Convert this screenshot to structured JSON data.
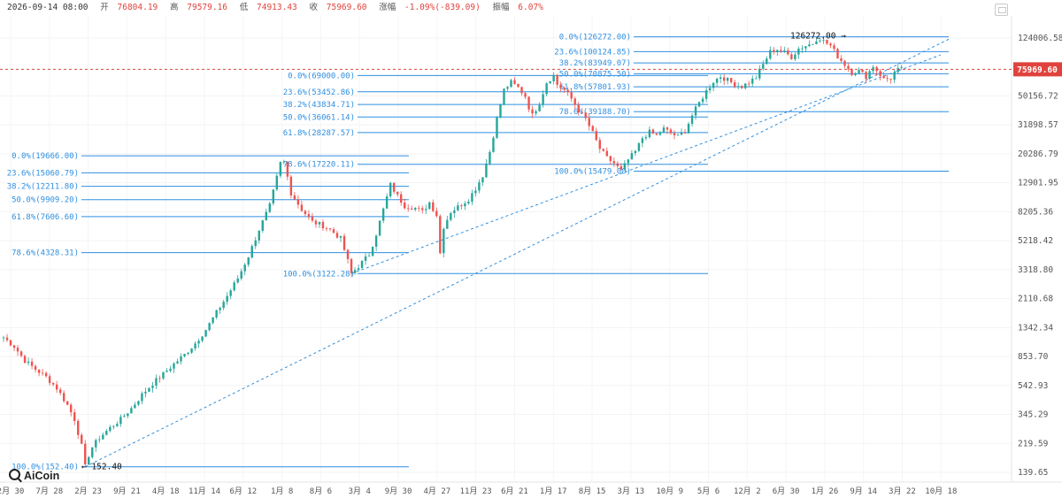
{
  "header": {
    "datetime": "2026-09-14 08:00",
    "open_label": "开",
    "open": "76804.19",
    "high_label": "高",
    "high": "79579.16",
    "low_label": "低",
    "low": "74913.43",
    "close_label": "收",
    "close": "75969.60",
    "change_label": "涨幅",
    "change": "-1.09%(-839.09)",
    "amplitude_label": "振幅",
    "amplitude": "6.07%"
  },
  "logo": {
    "text": "AiCoin"
  },
  "colors": {
    "up": "#26a69a",
    "down": "#ef5350",
    "fib": "#2f8fe0",
    "price_line": "#e0433d",
    "text": "#333333"
  },
  "chart_data": {
    "type": "candlestick",
    "y_scale": "log",
    "ylim": [
      120,
      175000
    ],
    "y_ticks": [
      "124006.58",
      "75969.60",
      "50156.72",
      "31898.57",
      "20286.79",
      "12901.95",
      "8205.36",
      "5218.42",
      "3318.80",
      "2110.68",
      "1342.34",
      "853.70",
      "542.93",
      "345.29",
      "219.59",
      "139.65"
    ],
    "x_ticks": [
      "2月 30",
      "7月 28",
      "2月 23",
      "9月 21",
      "4月 18",
      "11月 14",
      "6月 12",
      "1月 8",
      "8月 6",
      "3月 4",
      "9月 30",
      "4月 27",
      "11月 23",
      "6月 21",
      "1月 17",
      "8月 15",
      "3月 13",
      "10月 9",
      "5月 6",
      "12月 2",
      "6月 30",
      "1月 26",
      "9月 14",
      "3月 22",
      "10月 18"
    ],
    "current_price": "75969.60",
    "price_path": [
      [
        0,
        1150
      ],
      [
        3,
        1000
      ],
      [
        6,
        800
      ],
      [
        9,
        700
      ],
      [
        12,
        620
      ],
      [
        15,
        520
      ],
      [
        18,
        400
      ],
      [
        20,
        320
      ],
      [
        21,
        260
      ],
      [
        22.5,
        190
      ],
      [
        23,
        152.4
      ],
      [
        24.5,
        200
      ],
      [
        27,
        240
      ],
      [
        30,
        280
      ],
      [
        33,
        320
      ],
      [
        36,
        380
      ],
      [
        39,
        470
      ],
      [
        42,
        560
      ],
      [
        45,
        650
      ],
      [
        48,
        760
      ],
      [
        51,
        880
      ],
      [
        54,
        1050
      ],
      [
        57,
        1300
      ],
      [
        60,
        1700
      ],
      [
        63,
        2200
      ],
      [
        66,
        2900
      ],
      [
        69,
        4100
      ],
      [
        72,
        6200
      ],
      [
        75,
        9000
      ],
      [
        77,
        14000
      ],
      [
        78.5,
        19666
      ],
      [
        79.5,
        16000
      ],
      [
        81,
        11000
      ],
      [
        84,
        8500
      ],
      [
        87,
        7000
      ],
      [
        90,
        6600
      ],
      [
        92,
        6200
      ],
      [
        95,
        5400
      ],
      [
        97,
        3800
      ],
      [
        98,
        3122.28
      ],
      [
        100,
        3500
      ],
      [
        103,
        4200
      ],
      [
        105,
        5800
      ],
      [
        107,
        8500
      ],
      [
        109,
        12500
      ],
      [
        111,
        10500
      ],
      [
        113,
        9000
      ],
      [
        116,
        8700
      ],
      [
        118,
        8200
      ],
      [
        120,
        9500
      ],
      [
        122,
        7800
      ],
      [
        123,
        4300
      ],
      [
        124,
        6500
      ],
      [
        126,
        8200
      ],
      [
        129,
        9200
      ],
      [
        131,
        10000
      ],
      [
        133,
        11800
      ],
      [
        135,
        14500
      ],
      [
        137,
        21000
      ],
      [
        139,
        35000
      ],
      [
        141,
        55000
      ],
      [
        143,
        62000
      ],
      [
        145,
        57000
      ],
      [
        147,
        50000
      ],
      [
        148,
        42000
      ],
      [
        149,
        37000
      ],
      [
        151,
        45000
      ],
      [
        153,
        62000
      ],
      [
        155,
        69000
      ],
      [
        156,
        60000
      ],
      [
        158,
        55000
      ],
      [
        160,
        48000
      ],
      [
        162,
        40000
      ],
      [
        164,
        35000
      ],
      [
        166,
        28000
      ],
      [
        168,
        22000
      ],
      [
        170,
        19000
      ],
      [
        172,
        17500
      ],
      [
        174,
        15479
      ],
      [
        176,
        18500
      ],
      [
        178,
        21000
      ],
      [
        180,
        26000
      ],
      [
        182,
        28500
      ],
      [
        184,
        27000
      ],
      [
        186,
        30000
      ],
      [
        188,
        28000
      ],
      [
        190,
        26500
      ],
      [
        192,
        29000
      ],
      [
        194,
        37000
      ],
      [
        196,
        45000
      ],
      [
        198,
        54000
      ],
      [
        200,
        63000
      ],
      [
        202,
        68000
      ],
      [
        204,
        64000
      ],
      [
        206,
        60000
      ],
      [
        208,
        58000
      ],
      [
        210,
        62000
      ],
      [
        212,
        67000
      ],
      [
        214,
        82000
      ],
      [
        216,
        100000
      ],
      [
        218,
        104000
      ],
      [
        220,
        99000
      ],
      [
        222,
        92000
      ],
      [
        224,
        105000
      ],
      [
        226,
        110000
      ],
      [
        228,
        114000
      ],
      [
        229.5,
        126272
      ],
      [
        231,
        118000
      ],
      [
        233,
        110000
      ],
      [
        235,
        93000
      ],
      [
        237,
        82000
      ],
      [
        239,
        72000
      ],
      [
        241,
        74000
      ],
      [
        243,
        68000
      ],
      [
        245,
        80000
      ],
      [
        247,
        70000
      ],
      [
        248,
        65000
      ],
      [
        250,
        66000
      ],
      [
        251,
        72000
      ],
      [
        252.5,
        76804
      ],
      [
        253,
        75969.6
      ]
    ],
    "fib_retracements": [
      {
        "name": "fib-1",
        "levels": [
          {
            "label": "0.0%(19666.00)",
            "value": 19666.0
          },
          {
            "label": "23.6%(15060.79)",
            "value": 15060.79
          },
          {
            "label": "38.2%(12211.80)",
            "value": 12211.8
          },
          {
            "label": "50.0%(9909.20)",
            "value": 9909.2
          },
          {
            "label": "61.8%(7606.60)",
            "value": 7606.6
          },
          {
            "label": "78.6%(4328.31)",
            "value": 4328.31
          },
          {
            "label": "100.0%(152.40)",
            "value": 152.4
          }
        ]
      },
      {
        "name": "fib-2",
        "levels": [
          {
            "label": "0.0%(69000.00)",
            "value": 69000.0
          },
          {
            "label": "23.6%(53452.86)",
            "value": 53452.86
          },
          {
            "label": "38.2%(43834.71)",
            "value": 43834.71
          },
          {
            "label": "50.0%(36061.14)",
            "value": 36061.14
          },
          {
            "label": "61.8%(28287.57)",
            "value": 28287.57
          },
          {
            "label": "78.6%(17220.11)",
            "value": 17220.11
          },
          {
            "label": "100.0%(3122.28)",
            "value": 3122.28
          }
        ]
      },
      {
        "name": "fib-3",
        "levels": [
          {
            "label": "0.0%(126272.00)",
            "value": 126272.0
          },
          {
            "label": "23.6%(100124.85)",
            "value": 100124.85
          },
          {
            "label": "38.2%(83949.07)",
            "value": 83949.07
          },
          {
            "label": "50.0%(70875.50)",
            "value": 70875.5
          },
          {
            "label": "61.8%(57801.93)",
            "value": 57801.93
          },
          {
            "label": "78.6%(39188.70)",
            "value": 39188.7
          },
          {
            "label": "100.0%(15479.00)",
            "value": 15479.0
          }
        ]
      }
    ],
    "extreme_labels": [
      {
        "text": "126272.00",
        "value": 126272.0
      },
      {
        "text": "152.40",
        "value": 152.4
      }
    ],
    "trendlines": [
      {
        "name": "trendline-upper",
        "from": [
          23,
          152.4
        ],
        "to": [
          267,
          124000
        ]
      },
      {
        "name": "trendline-lower",
        "from": [
          98,
          3122.28
        ],
        "to": [
          264,
          95000
        ]
      }
    ]
  }
}
